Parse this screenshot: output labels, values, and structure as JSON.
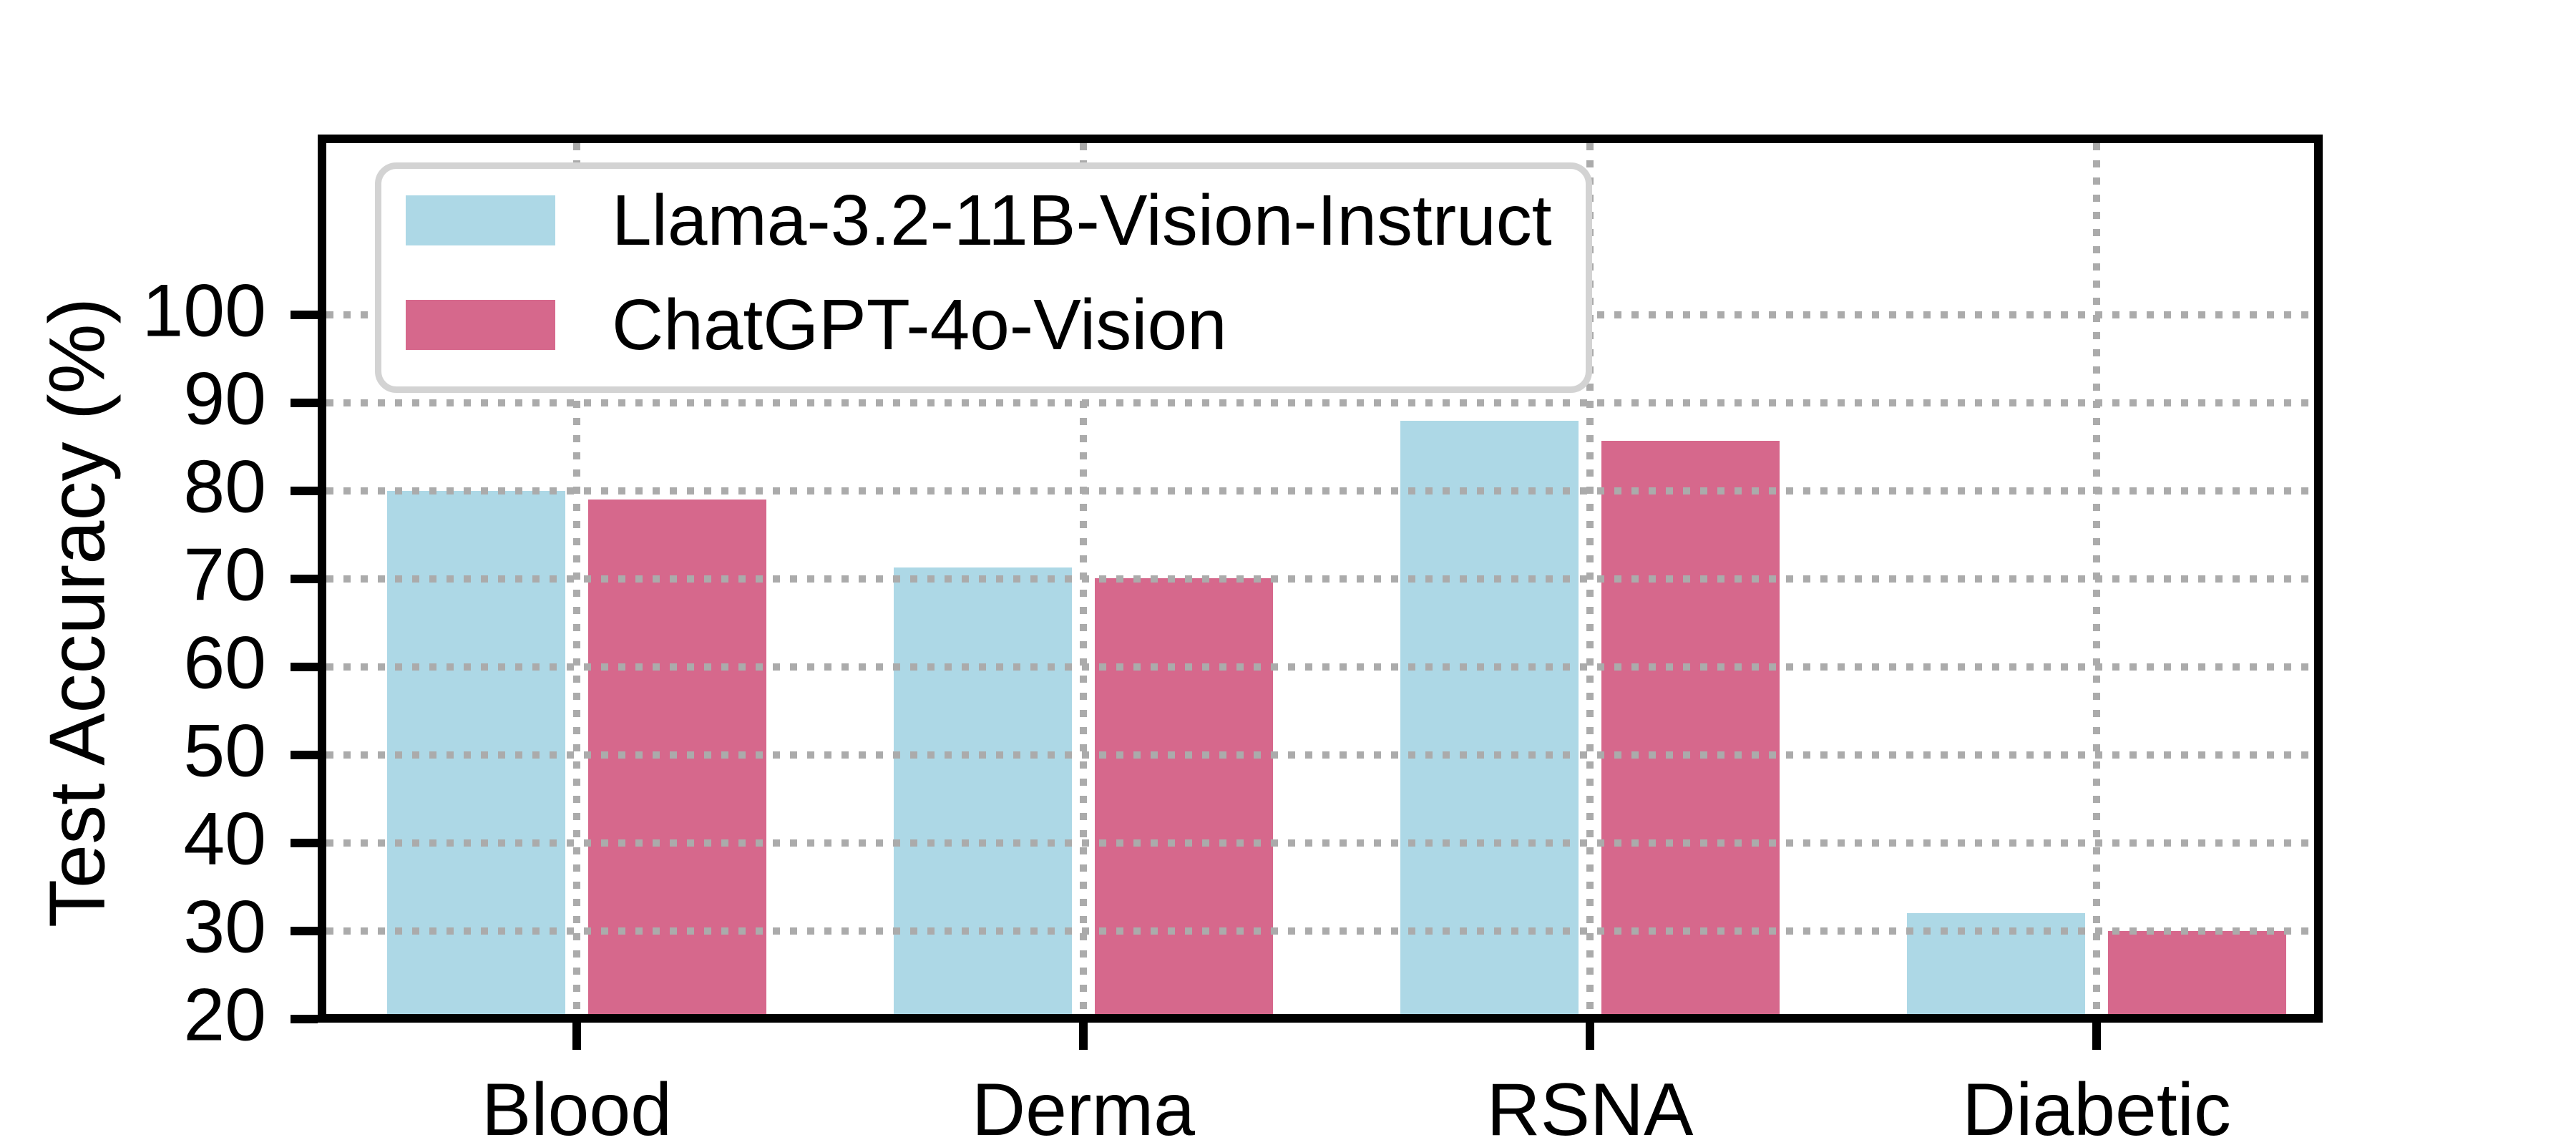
{
  "chart_data": {
    "type": "bar",
    "title": "",
    "xlabel": "",
    "ylabel": "Test Accuracy (%)",
    "categories": [
      "Blood",
      "Derma",
      "RSNA",
      "Diabetic"
    ],
    "series": [
      {
        "name": "Llama-3.2-11B-Vision-Instruct",
        "color": "#ADD8E6",
        "values": [
          80.0,
          71.3,
          88.0,
          32.0
        ]
      },
      {
        "name": "ChatGPT-4o-Vision",
        "color": "#D6688C",
        "values": [
          79.0,
          70.1,
          85.7,
          30.0
        ]
      }
    ],
    "y_ticks": [
      20,
      30,
      40,
      50,
      60,
      70,
      80,
      90,
      100
    ],
    "ylim": [
      20,
      120
    ],
    "grid": {
      "horizontal": true,
      "vertical": true,
      "style": "dotted",
      "color": "#ABABAB"
    },
    "legend": {
      "position": "upper left",
      "border_color": "#D3D3D3"
    },
    "spine_color": "#000000"
  }
}
